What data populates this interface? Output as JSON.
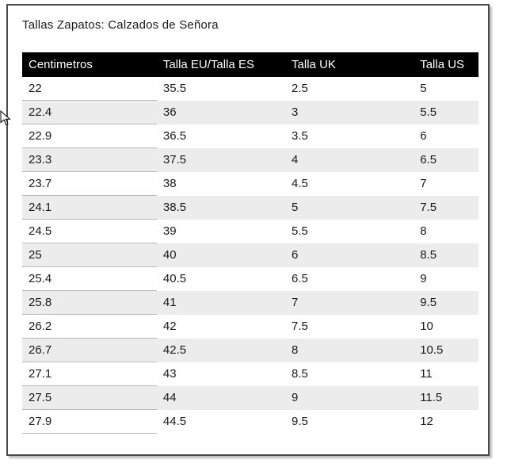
{
  "page": {
    "title": "Tallas Zapatos: Calzados de Señora"
  },
  "table": {
    "headers": [
      "Centimetros",
      "Talla EU/Talla ES",
      "Talla UK",
      "Talla US"
    ],
    "rows": [
      [
        "22",
        "35.5",
        "2.5",
        "5"
      ],
      [
        "22.4",
        "36",
        "3",
        "5.5"
      ],
      [
        "22.9",
        "36.5",
        "3.5",
        "6"
      ],
      [
        "23.3",
        "37.5",
        "4",
        "6.5"
      ],
      [
        "23.7",
        "38",
        "4.5",
        "7"
      ],
      [
        "24.1",
        "38.5",
        "5",
        "7.5"
      ],
      [
        "24.5",
        "39",
        "5.5",
        "8"
      ],
      [
        "25",
        "40",
        "6",
        "8.5"
      ],
      [
        "25.4",
        "40.5",
        "6.5",
        "9"
      ],
      [
        "25.8",
        "41",
        "7",
        "9.5"
      ],
      [
        "26.2",
        "42",
        "7.5",
        "10"
      ],
      [
        "26.7",
        "42.5",
        "8",
        "10.5"
      ],
      [
        "27.1",
        "43",
        "8.5",
        "11"
      ],
      [
        "27.5",
        "44",
        "9",
        "11.5"
      ],
      [
        "27.9",
        "44.5",
        "9.5",
        "12"
      ]
    ],
    "colors": {
      "header_bg": "#000000",
      "header_text": "#ffffff",
      "row_alt_bg": "#ececec"
    }
  }
}
